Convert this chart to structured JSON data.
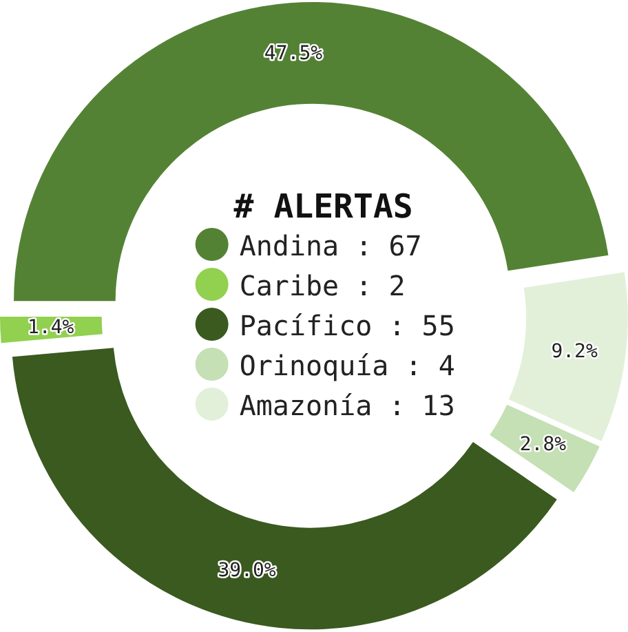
{
  "chart_data": {
    "type": "donut",
    "legend_title": "# ALERTAS",
    "legend": "center",
    "categories": [
      "Andina : 67",
      "Caribe : 2",
      "Pacífico : 55",
      "Orinoquía : 4",
      "Amazonía : 13"
    ],
    "values": [
      47.5,
      1.4,
      39.0,
      2.8,
      9.2
    ],
    "colors": [
      "#548235",
      "#92d050",
      "#3a5a1f",
      "#c5e0b4",
      "#e2f0d9"
    ],
    "value_labels": [
      "47.5%",
      "1.4%",
      "39.0%",
      "2.8%",
      "9.2%"
    ]
  }
}
